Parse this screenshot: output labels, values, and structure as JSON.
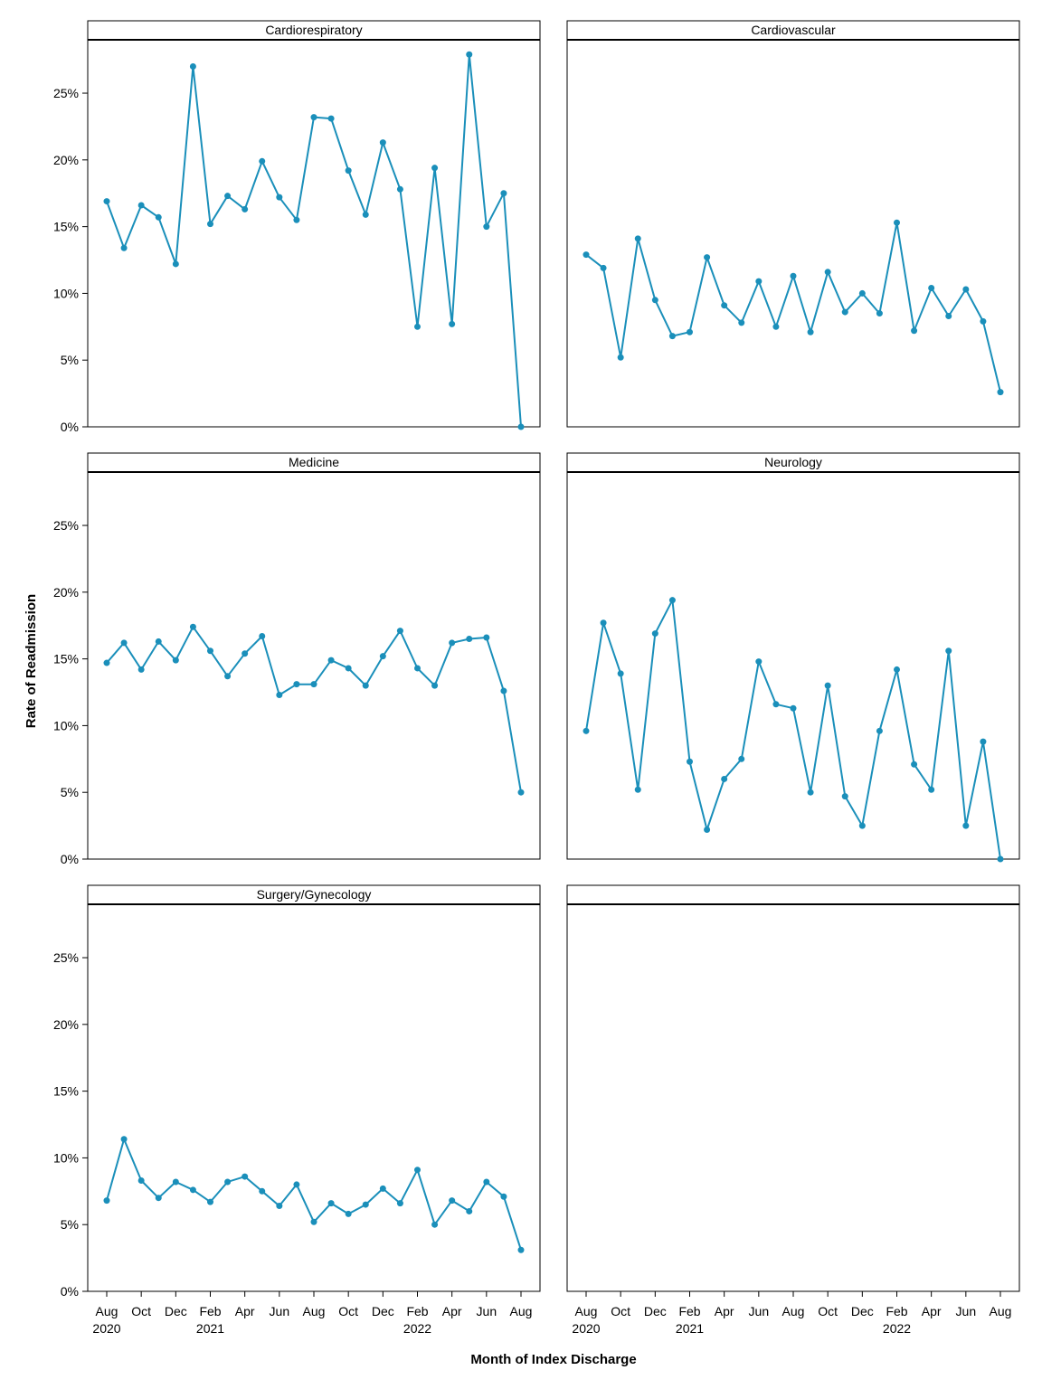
{
  "chart_data": {
    "type": "line",
    "ylabel": "Rate of Readmission",
    "xlabel": "Month of Index Discharge",
    "ylim": [
      0,
      0.29
    ],
    "y_ticks": [
      0,
      0.05,
      0.1,
      0.15,
      0.2,
      0.25
    ],
    "y_tick_labels": [
      "0%",
      "5%",
      "10%",
      "15%",
      "20%",
      "25%"
    ],
    "x_tick_labels": [
      "Aug",
      "Oct",
      "Dec",
      "Feb",
      "Apr",
      "Jun",
      "Aug",
      "Oct",
      "Dec",
      "Feb",
      "Apr",
      "Jun",
      "Aug"
    ],
    "x_tick_months": [
      0,
      2,
      4,
      6,
      8,
      10,
      12,
      14,
      16,
      18,
      20,
      22,
      24
    ],
    "x_year_labels": [
      {
        "month_index": 0,
        "label": "2020"
      },
      {
        "month_index": 6,
        "label": "2021"
      },
      {
        "month_index": 18,
        "label": "2022"
      }
    ],
    "x_months": [
      "2020-08",
      "2020-09",
      "2020-10",
      "2020-11",
      "2020-12",
      "2021-01",
      "2021-02",
      "2021-03",
      "2021-04",
      "2021-05",
      "2021-06",
      "2021-07",
      "2021-08",
      "2021-09",
      "2021-10",
      "2021-11",
      "2021-12",
      "2022-01",
      "2022-02",
      "2022-03",
      "2022-04",
      "2022-05",
      "2022-06",
      "2022-07",
      "2022-08"
    ],
    "grid": false,
    "line_color": "#1a8fba",
    "panels": [
      {
        "title": "Cardiorespiratory",
        "values": [
          0.169,
          0.134,
          0.166,
          0.157,
          0.122,
          0.27,
          0.152,
          0.173,
          0.163,
          0.199,
          0.172,
          0.155,
          0.232,
          0.231,
          0.192,
          0.159,
          0.213,
          0.178,
          0.075,
          0.194,
          0.077,
          0.279,
          0.15,
          0.175,
          0.0
        ]
      },
      {
        "title": "Cardiovascular",
        "values": [
          0.129,
          0.119,
          0.052,
          0.141,
          0.095,
          0.068,
          0.071,
          0.127,
          0.091,
          0.078,
          0.109,
          0.075,
          0.113,
          0.071,
          0.116,
          0.086,
          0.1,
          0.085,
          0.153,
          0.072,
          0.104,
          0.083,
          0.103,
          0.079,
          0.026
        ]
      },
      {
        "title": "Medicine",
        "values": [
          0.147,
          0.162,
          0.142,
          0.163,
          0.149,
          0.174,
          0.156,
          0.137,
          0.154,
          0.167,
          0.123,
          0.131,
          0.131,
          0.149,
          0.143,
          0.13,
          0.152,
          0.171,
          0.143,
          0.13,
          0.162,
          0.165,
          0.166,
          0.126,
          0.05
        ]
      },
      {
        "title": "Neurology",
        "values": [
          0.096,
          0.177,
          0.139,
          0.052,
          0.169,
          0.194,
          0.073,
          0.022,
          0.06,
          0.075,
          0.148,
          0.116,
          0.113,
          0.05,
          0.13,
          0.047,
          0.025,
          0.096,
          0.142,
          0.071,
          0.052,
          0.156,
          0.025,
          0.088,
          0.0
        ]
      },
      {
        "title": "Surgery/Gynecology",
        "values": [
          0.068,
          0.114,
          0.083,
          0.07,
          0.082,
          0.076,
          0.067,
          0.082,
          0.086,
          0.075,
          0.064,
          0.08,
          0.052,
          0.066,
          0.058,
          0.065,
          0.077,
          0.066,
          0.091,
          0.05,
          0.068,
          0.06,
          0.082,
          0.071,
          0.031
        ]
      },
      {
        "title": "",
        "values": []
      }
    ]
  }
}
